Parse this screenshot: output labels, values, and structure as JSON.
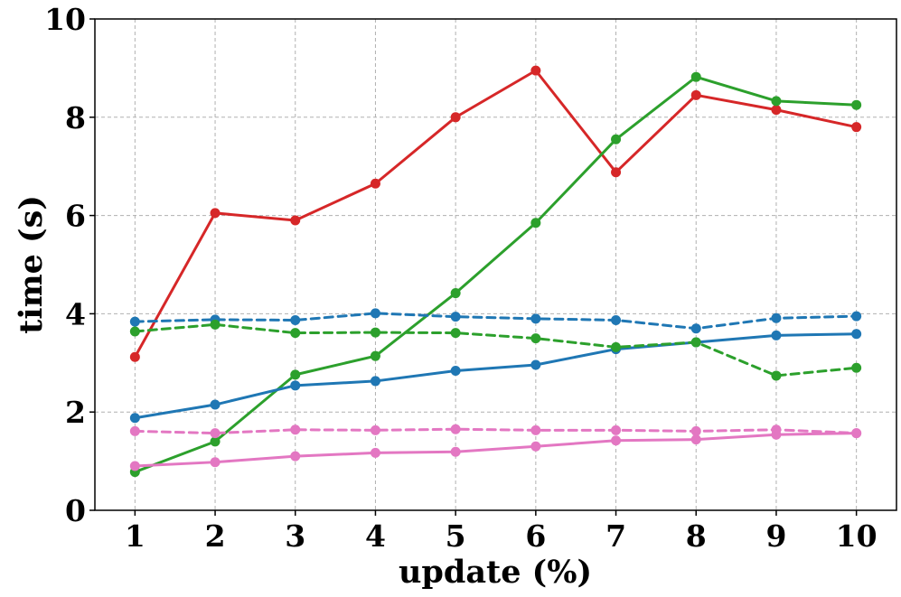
{
  "chart_data": {
    "type": "line",
    "title": "",
    "xlabel": "update (%)",
    "ylabel": "time (s)",
    "x": [
      1,
      2,
      3,
      4,
      5,
      6,
      7,
      8,
      9,
      10
    ],
    "x_ticks": [
      "1",
      "2",
      "3",
      "4",
      "5",
      "6",
      "7",
      "8",
      "9",
      "10"
    ],
    "y_ticks": [
      "0",
      "2",
      "4",
      "6",
      "8",
      "10"
    ],
    "xlim": [
      0.5,
      10.5
    ],
    "ylim": [
      0,
      10
    ],
    "grid": true,
    "legend": false,
    "series": [
      {
        "color": "#d62728",
        "linestyle": "solid",
        "values": [
          3.12,
          6.05,
          5.9,
          6.65,
          8.0,
          8.95,
          6.88,
          8.45,
          8.15,
          7.8
        ]
      },
      {
        "color": "#2ca02c",
        "linestyle": "solid",
        "values": [
          0.78,
          1.4,
          2.76,
          3.14,
          4.42,
          5.85,
          7.55,
          8.82,
          8.33,
          8.25
        ]
      },
      {
        "color": "#1f77b4",
        "linestyle": "solid",
        "values": [
          1.88,
          2.15,
          2.54,
          2.63,
          2.84,
          2.96,
          3.28,
          3.42,
          3.56,
          3.59
        ]
      },
      {
        "color": "#1f77b4",
        "linestyle": "dashed",
        "values": [
          3.84,
          3.88,
          3.87,
          4.01,
          3.94,
          3.9,
          3.87,
          3.7,
          3.91,
          3.95
        ]
      },
      {
        "color": "#2ca02c",
        "linestyle": "dashed",
        "values": [
          3.64,
          3.78,
          3.61,
          3.62,
          3.61,
          3.5,
          3.32,
          3.42,
          2.74,
          2.9
        ]
      },
      {
        "color": "#e377c2",
        "linestyle": "dashed",
        "values": [
          1.61,
          1.57,
          1.64,
          1.63,
          1.65,
          1.63,
          1.63,
          1.61,
          1.64,
          1.57
        ]
      },
      {
        "color": "#e377c2",
        "linestyle": "solid",
        "values": [
          0.9,
          0.98,
          1.1,
          1.17,
          1.19,
          1.3,
          1.42,
          1.44,
          1.54,
          1.57
        ]
      }
    ]
  }
}
